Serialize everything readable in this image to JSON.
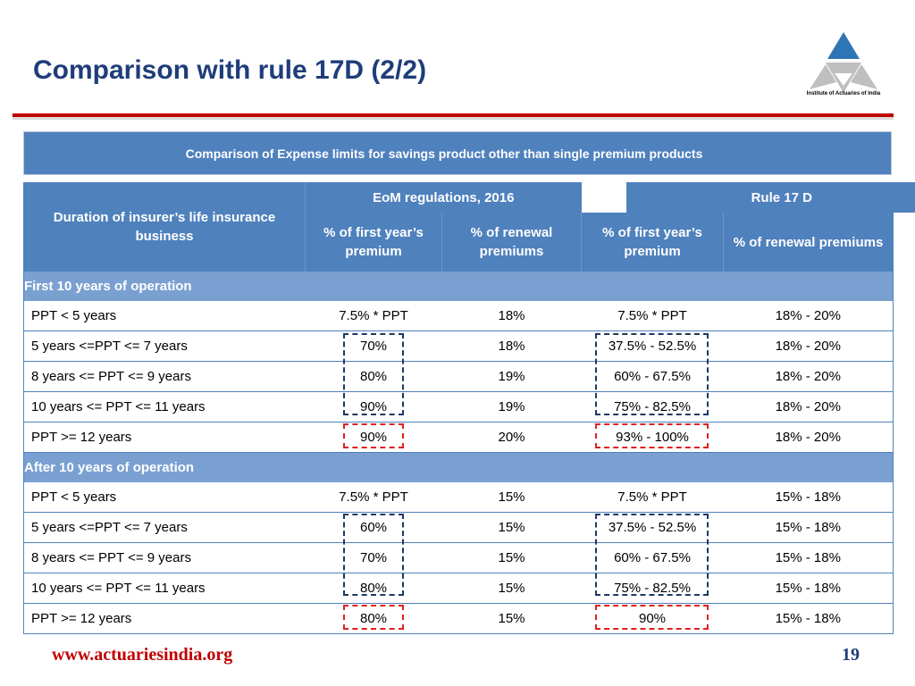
{
  "title": "Comparison with rule 17D (2/2)",
  "logo": {
    "caption": "Institute of Actuaries of India"
  },
  "banner": "Comparison of Expense limits for savings product other than single premium products",
  "table": {
    "col_header_main": "Duration of insurer’s life insurance business",
    "group_eom": "EoM regulations, 2016",
    "group_rule": "Rule 17 D",
    "sub_headers": [
      "% of first year’s premium",
      "% of renewal premiums",
      "% of first year’s premium",
      "% of renewal premiums"
    ],
    "sections": [
      {
        "label": "First 10 years of operation",
        "rows": [
          [
            "PPT < 5 years",
            "7.5% * PPT",
            "18%",
            "7.5% * PPT",
            "18% - 20%"
          ],
          [
            "5 years <=PPT <= 7 years",
            "70%",
            "18%",
            "37.5% - 52.5%",
            "18% - 20%"
          ],
          [
            "8 years <= PPT <= 9 years",
            "80%",
            "19%",
            "60% - 67.5%",
            "18% - 20%"
          ],
          [
            "10 years <= PPT <= 11 years",
            "90%",
            "19%",
            "75% - 82.5%",
            "18% - 20%"
          ],
          [
            "PPT >= 12 years",
            "90%",
            "20%",
            "93% - 100%",
            "18% - 20%"
          ]
        ]
      },
      {
        "label": "After 10 years of operation",
        "rows": [
          [
            "PPT < 5 years",
            "7.5% * PPT",
            "15%",
            "7.5% * PPT",
            "15% - 18%"
          ],
          [
            "5 years <=PPT <= 7 years",
            "60%",
            "15%",
            "37.5% - 52.5%",
            "15% - 18%"
          ],
          [
            "8 years <= PPT <= 9 years",
            "70%",
            "15%",
            "60% - 67.5%",
            "15% - 18%"
          ],
          [
            "10 years <= PPT <= 11 years",
            "80%",
            "15%",
            "75% - 82.5%",
            "15% - 18%"
          ],
          [
            "PPT >= 12 years",
            "80%",
            "15%",
            "90%",
            "15% - 18%"
          ]
        ]
      }
    ]
  },
  "highlight_colors": {
    "group": "#1f3864",
    "emphasis": "#e02020"
  },
  "footer": {
    "url": "www.actuariesindia.org",
    "page": "19"
  }
}
